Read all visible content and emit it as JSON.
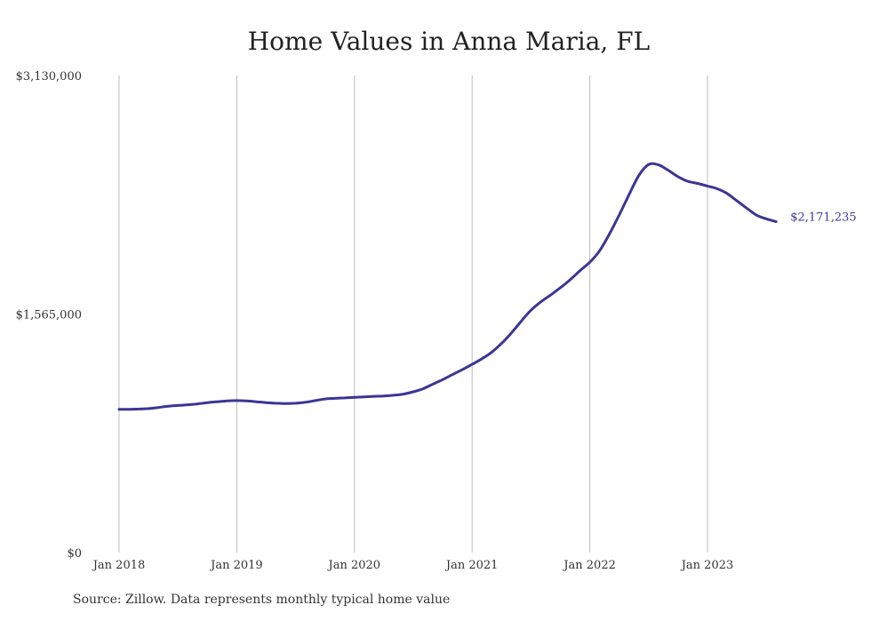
{
  "chart_data": {
    "type": "line",
    "title": "Home Values in Anna Maria, FL",
    "xlabel": "",
    "ylabel": "",
    "ylim": [
      0,
      3130000
    ],
    "y_ticks": [
      "$3,130,000",
      "$1,565,000",
      "$0"
    ],
    "y_tick_values": [
      3130000,
      1565000,
      0
    ],
    "x_ticks": [
      "Jan 2018",
      "Jan 2019",
      "Jan 2020",
      "Jan 2021",
      "Jan 2022",
      "Jan 2023"
    ],
    "x_tick_values": [
      "2018-01",
      "2019-01",
      "2020-01",
      "2021-01",
      "2022-01",
      "2023-01"
    ],
    "grid": "vertical",
    "line_color": "#3b3694",
    "end_label": "$2,171,235",
    "series": [
      {
        "x": [
          "2018-01",
          "2018-02",
          "2018-03",
          "2018-04",
          "2018-05",
          "2018-06",
          "2018-07",
          "2018-08",
          "2018-09",
          "2018-10",
          "2018-11",
          "2018-12",
          "2019-01",
          "2019-02",
          "2019-03",
          "2019-04",
          "2019-05",
          "2019-06",
          "2019-07",
          "2019-08",
          "2019-09",
          "2019-10",
          "2019-11",
          "2019-12",
          "2020-01",
          "2020-02",
          "2020-03",
          "2020-04",
          "2020-05",
          "2020-06",
          "2020-07",
          "2020-08",
          "2020-09",
          "2020-10",
          "2020-11",
          "2020-12",
          "2021-01",
          "2021-02",
          "2021-03",
          "2021-04",
          "2021-05",
          "2021-06",
          "2021-07",
          "2021-08",
          "2021-09",
          "2021-10",
          "2021-11",
          "2021-12",
          "2022-01",
          "2022-02",
          "2022-03",
          "2022-04",
          "2022-05",
          "2022-06",
          "2022-07",
          "2022-08",
          "2022-09",
          "2022-10",
          "2022-11",
          "2022-12",
          "2023-01",
          "2023-02",
          "2023-03",
          "2023-04",
          "2023-05",
          "2023-06",
          "2023-07",
          "2023-08"
        ],
        "values": [
          940000,
          940000,
          942000,
          945000,
          952000,
          960000,
          965000,
          970000,
          976000,
          984000,
          990000,
          995000,
          997000,
          995000,
          990000,
          984000,
          980000,
          978000,
          980000,
          986000,
          997000,
          1008000,
          1012000,
          1015000,
          1018000,
          1022000,
          1025000,
          1027000,
          1032000,
          1040000,
          1055000,
          1075000,
          1105000,
          1135000,
          1168000,
          1200000,
          1235000,
          1272000,
          1315000,
          1372000,
          1440000,
          1518000,
          1590000,
          1645000,
          1690000,
          1738000,
          1790000,
          1850000,
          1905000,
          1980000,
          2090000,
          2215000,
          2348000,
          2474000,
          2546000,
          2544000,
          2508000,
          2466000,
          2436000,
          2422000,
          2405000,
          2387000,
          2356000,
          2308000,
          2260000,
          2214000,
          2190000,
          2171235
        ]
      }
    ]
  },
  "source_note": "Source: Zillow. Data represents monthly typical home value"
}
